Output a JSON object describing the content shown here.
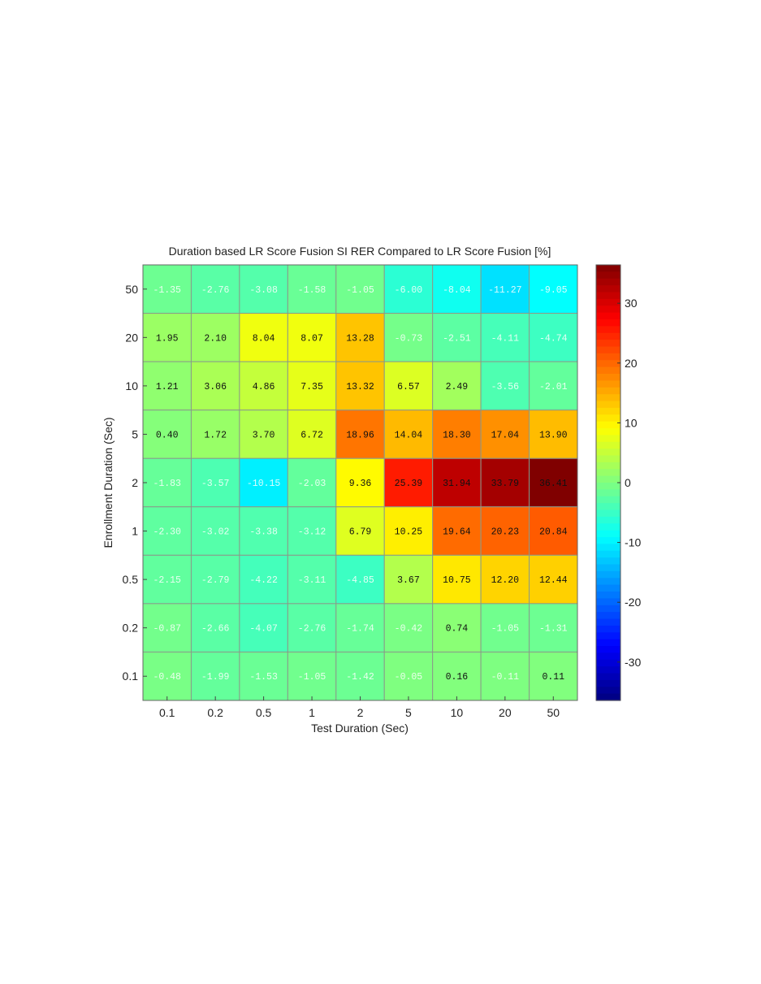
{
  "chart_data": {
    "type": "heatmap",
    "title": "Duration based LR Score Fusion SI RER Compared to LR Score Fusion [%]",
    "xlabel": "Test Duration (Sec)",
    "ylabel": "Enrollment Duration (Sec)",
    "x_categories": [
      "0.1",
      "0.2",
      "0.5",
      "1",
      "2",
      "5",
      "10",
      "20",
      "50"
    ],
    "y_categories": [
      "50",
      "20",
      "10",
      "5",
      "2",
      "1",
      "0.5",
      "0.2",
      "0.1"
    ],
    "values": [
      [
        "-1.35",
        "-2.76",
        "-3.08",
        "-1.58",
        "-1.05",
        "-6.00",
        "-8.04",
        "-11.27",
        "-9.05"
      ],
      [
        "1.95",
        "2.10",
        "8.04",
        "8.07",
        "13.28",
        "-0.73",
        "-2.51",
        "-4.11",
        "-4.74"
      ],
      [
        "1.21",
        "3.06",
        "4.86",
        "7.35",
        "13.32",
        "6.57",
        "2.49",
        "-3.56",
        "-2.01"
      ],
      [
        "0.40",
        "1.72",
        "3.70",
        "6.72",
        "18.96",
        "14.04",
        "18.30",
        "17.04",
        "13.90"
      ],
      [
        "-1.83",
        "-3.57",
        "-10.15",
        "-2.03",
        "9.36",
        "25.39",
        "31.94",
        "33.79",
        "36.41"
      ],
      [
        "-2.30",
        "-3.02",
        "-3.38",
        "-3.12",
        "6.79",
        "10.25",
        "19.64",
        "20.23",
        "20.84"
      ],
      [
        "-2.15",
        "-2.79",
        "-4.22",
        "-3.11",
        "-4.85",
        "3.67",
        "10.75",
        "12.20",
        "12.44"
      ],
      [
        "-0.87",
        "-2.66",
        "-4.07",
        "-2.76",
        "-1.74",
        "-0.42",
        "0.74",
        "-1.05",
        "-1.31"
      ],
      [
        "-0.48",
        "-1.99",
        "-1.53",
        "-1.05",
        "-1.42",
        "-0.05",
        "0.16",
        "-0.11",
        "0.11"
      ]
    ],
    "colorbar": {
      "colormap": "jet",
      "range": [
        -36.41,
        36.41
      ],
      "ticks": [
        "-30",
        "-20",
        "-10",
        "0",
        "10",
        "20",
        "30"
      ]
    },
    "grid": true
  }
}
